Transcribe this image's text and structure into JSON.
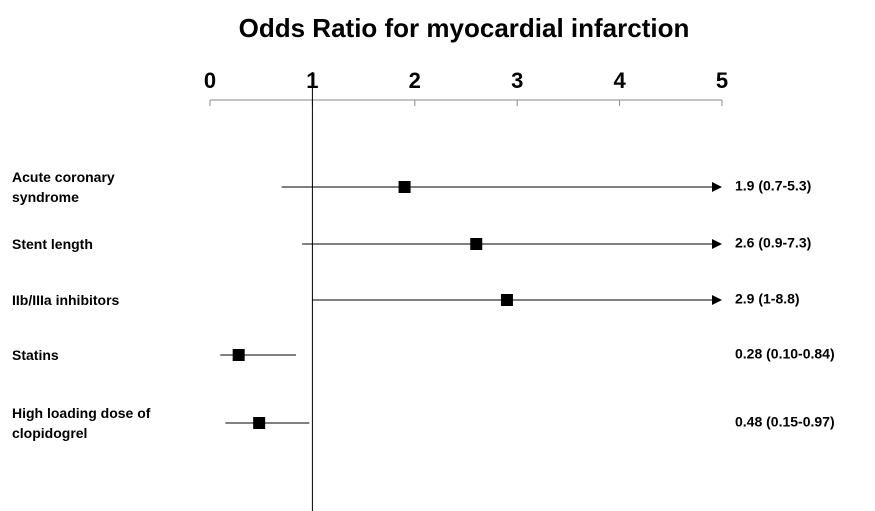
{
  "chart_data": {
    "type": "forest",
    "title": "Odds Ratio for myocardial infarction",
    "categories": [
      "Acute coronary syndrome",
      "Stent length",
      "IIb/IIIa inhibitors",
      "Statins",
      "High loading dose of clopidogrel"
    ],
    "values": [
      1.9,
      2.6,
      2.9,
      0.28,
      0.48
    ],
    "lower": [
      0.7,
      0.9,
      1,
      0.1,
      0.15
    ],
    "upper": [
      5.3,
      7.3,
      8.8,
      0.84,
      0.97
    ],
    "value_labels": [
      "1.9 (0.7-5.3)",
      "2.6 (0.9-7.3)",
      "2.9 (1-8.8)",
      "0.28 (0.10-0.84)",
      "0.48 (0.15-0.97)"
    ],
    "reference_line": 1,
    "xlim": [
      0,
      5
    ],
    "xticks": [
      0,
      1,
      2,
      3,
      4,
      5
    ],
    "color": "#000000"
  }
}
